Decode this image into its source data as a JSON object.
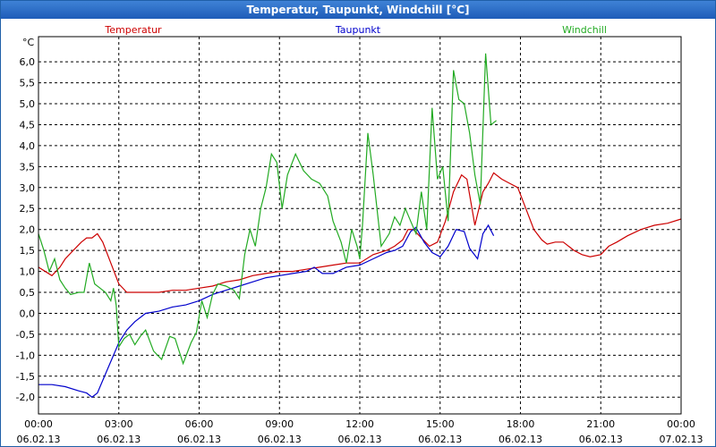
{
  "window": {
    "title": "Temperatur, Taupunkt, Windchill [°C]"
  },
  "colors": {
    "temperatur": "#cc0000",
    "taupunkt": "#0000cc",
    "windchill": "#22aa22",
    "grid": "#000000",
    "titlebar": "#2a6cc8"
  },
  "chart_data": {
    "type": "line",
    "title": "Temperatur, Taupunkt, Windchill [°C]",
    "ylabel": "°C",
    "ylim": [
      -2.4,
      6.6
    ],
    "xlim": [
      0,
      24
    ],
    "grid": true,
    "legend_placement": "top",
    "y_ticks": [
      "-2,0",
      "-1,5",
      "-1,0",
      "-0,5",
      "0,0",
      "0,5",
      "1,0",
      "1,5",
      "2,0",
      "2,5",
      "3,0",
      "3,5",
      "4,0",
      "4,5",
      "5,0",
      "5,5",
      "6,0"
    ],
    "y_tick_values": [
      -2.0,
      -1.5,
      -1.0,
      -0.5,
      0.0,
      0.5,
      1.0,
      1.5,
      2.0,
      2.5,
      3.0,
      3.5,
      4.0,
      4.5,
      5.0,
      5.5,
      6.0
    ],
    "x_ticks": [
      {
        "x": 0,
        "time": "00:00",
        "date": "06.02.13"
      },
      {
        "x": 3,
        "time": "03:00",
        "date": "06.02.13"
      },
      {
        "x": 6,
        "time": "06:00",
        "date": "06.02.13"
      },
      {
        "x": 9,
        "time": "09:00",
        "date": "06.02.13"
      },
      {
        "x": 12,
        "time": "12:00",
        "date": "06.02.13"
      },
      {
        "x": 15,
        "time": "15:00",
        "date": "06.02.13"
      },
      {
        "x": 18,
        "time": "18:00",
        "date": "06.02.13"
      },
      {
        "x": 21,
        "time": "21:00",
        "date": "06.02.13"
      },
      {
        "x": 24,
        "time": "00:00",
        "date": "07.02.13"
      }
    ],
    "series": [
      {
        "name": "Temperatur",
        "x": [
          0,
          0.5,
          0.8,
          1.0,
          1.3,
          1.6,
          1.8,
          2.0,
          2.2,
          2.4,
          2.7,
          3.0,
          3.3,
          3.6,
          4.0,
          4.5,
          5.0,
          5.5,
          6.0,
          6.5,
          7.0,
          7.5,
          8.0,
          8.5,
          9.0,
          9.5,
          10.0,
          10.5,
          11.0,
          11.5,
          12.0,
          12.5,
          13.0,
          13.3,
          13.6,
          13.8,
          14.0,
          14.3,
          14.6,
          14.9,
          15.2,
          15.5,
          15.8,
          16.0,
          16.3,
          16.6,
          16.8,
          17.0,
          17.3,
          17.6,
          17.9,
          18.2,
          18.5,
          18.8,
          19.0,
          19.3,
          19.6,
          20.0,
          20.3,
          20.6,
          21.0,
          21.3,
          21.6,
          22.0,
          22.5,
          23.0,
          23.5,
          24.0
        ],
        "values": [
          1.1,
          0.9,
          1.1,
          1.3,
          1.5,
          1.7,
          1.8,
          1.8,
          1.9,
          1.7,
          1.2,
          0.7,
          0.5,
          0.5,
          0.5,
          0.5,
          0.55,
          0.55,
          0.6,
          0.65,
          0.75,
          0.8,
          0.9,
          0.95,
          1.0,
          1.0,
          1.05,
          1.1,
          1.15,
          1.2,
          1.2,
          1.4,
          1.5,
          1.6,
          1.75,
          2.0,
          2.0,
          1.8,
          1.6,
          1.7,
          2.2,
          2.9,
          3.3,
          3.2,
          2.1,
          2.9,
          3.1,
          3.35,
          3.2,
          3.1,
          3.0,
          2.5,
          2.0,
          1.75,
          1.65,
          1.7,
          1.7,
          1.5,
          1.4,
          1.35,
          1.4,
          1.6,
          1.7,
          1.85,
          2.0,
          2.1,
          2.15,
          2.25
        ]
      },
      {
        "name": "Taupunkt",
        "x": [
          0,
          0.5,
          1.0,
          1.5,
          1.8,
          2.0,
          2.2,
          2.4,
          2.6,
          2.8,
          3.0,
          3.3,
          3.6,
          4.0,
          4.5,
          5.0,
          5.5,
          6.0,
          6.5,
          7.0,
          7.5,
          8.0,
          8.5,
          9.0,
          9.5,
          10.0,
          10.3,
          10.6,
          11.0,
          11.5,
          12.0,
          12.5,
          13.0,
          13.3,
          13.6,
          13.9,
          14.1,
          14.4,
          14.7,
          15.0,
          15.3,
          15.6,
          15.9,
          16.1,
          16.4,
          16.6,
          16.8,
          17.0
        ],
        "values": [
          -1.7,
          -1.7,
          -1.75,
          -1.85,
          -1.9,
          -2.0,
          -1.9,
          -1.6,
          -1.3,
          -1.0,
          -0.7,
          -0.4,
          -0.2,
          0.0,
          0.05,
          0.15,
          0.2,
          0.3,
          0.45,
          0.55,
          0.65,
          0.75,
          0.85,
          0.9,
          0.95,
          1.0,
          1.1,
          0.95,
          0.95,
          1.1,
          1.15,
          1.3,
          1.45,
          1.5,
          1.6,
          1.95,
          2.05,
          1.7,
          1.45,
          1.35,
          1.6,
          2.0,
          1.95,
          1.55,
          1.3,
          1.9,
          2.1,
          1.85
        ]
      },
      {
        "name": "Windchill",
        "x": [
          0,
          0.2,
          0.4,
          0.6,
          0.8,
          1.0,
          1.2,
          1.5,
          1.7,
          1.9,
          2.1,
          2.3,
          2.5,
          2.7,
          2.8,
          2.9,
          3.0,
          3.2,
          3.4,
          3.6,
          3.8,
          4.0,
          4.3,
          4.6,
          4.9,
          5.1,
          5.4,
          5.7,
          5.9,
          6.1,
          6.3,
          6.5,
          6.7,
          7.0,
          7.3,
          7.5,
          7.7,
          7.9,
          8.1,
          8.3,
          8.5,
          8.7,
          8.9,
          9.1,
          9.3,
          9.6,
          9.9,
          10.2,
          10.5,
          10.8,
          11.0,
          11.3,
          11.5,
          11.7,
          11.9,
          12.0,
          12.1,
          12.3,
          12.5,
          12.8,
          13.1,
          13.3,
          13.5,
          13.7,
          13.9,
          14.1,
          14.3,
          14.5,
          14.7,
          14.9,
          15.1,
          15.3,
          15.5,
          15.7,
          15.9,
          16.1,
          16.3,
          16.5,
          16.7,
          16.9,
          17.1
        ],
        "values": [
          1.9,
          1.5,
          1.0,
          1.3,
          0.8,
          0.6,
          0.45,
          0.5,
          0.5,
          1.2,
          0.7,
          0.6,
          0.5,
          0.3,
          0.6,
          0.2,
          -0.8,
          -0.6,
          -0.5,
          -0.75,
          -0.55,
          -0.4,
          -0.9,
          -1.1,
          -0.55,
          -0.6,
          -1.2,
          -0.7,
          -0.45,
          0.3,
          -0.1,
          0.45,
          0.7,
          0.65,
          0.55,
          0.35,
          1.4,
          2.0,
          1.6,
          2.5,
          3.0,
          3.8,
          3.6,
          2.5,
          3.3,
          3.8,
          3.4,
          3.2,
          3.1,
          2.8,
          2.2,
          1.7,
          1.2,
          2.0,
          1.6,
          1.3,
          2.1,
          4.3,
          3.3,
          1.6,
          1.9,
          2.3,
          2.1,
          2.5,
          2.2,
          1.9,
          2.9,
          2.0,
          4.9,
          3.2,
          3.5,
          2.2,
          5.8,
          5.1,
          5.0,
          4.3,
          3.3,
          2.6,
          6.2,
          4.5,
          4.6
        ]
      }
    ]
  }
}
